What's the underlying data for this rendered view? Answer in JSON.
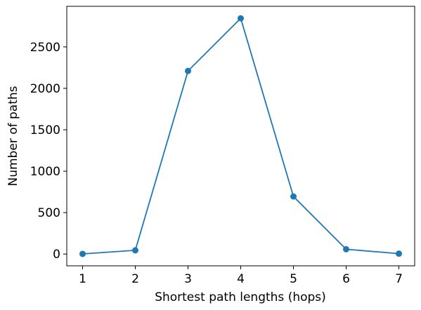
{
  "chart_data": {
    "type": "line",
    "title": "",
    "xlabel": "Shortest path lengths (hops)",
    "ylabel": "Number of paths",
    "x": [
      1,
      2,
      3,
      4,
      5,
      6,
      7
    ],
    "series": [
      {
        "values": [
          2,
          45,
          2210,
          2845,
          695,
          58,
          5
        ],
        "color": "#1f77b4",
        "marker": "circle"
      }
    ],
    "xticks": [
      "1",
      "2",
      "3",
      "4",
      "5",
      "6",
      "7"
    ],
    "yticks": [
      "0",
      "500",
      "1000",
      "1500",
      "2000",
      "2500"
    ],
    "xlim": [
      0.7,
      7.3
    ],
    "ylim": [
      -142,
      2990
    ],
    "grid": false,
    "legend": "none"
  }
}
